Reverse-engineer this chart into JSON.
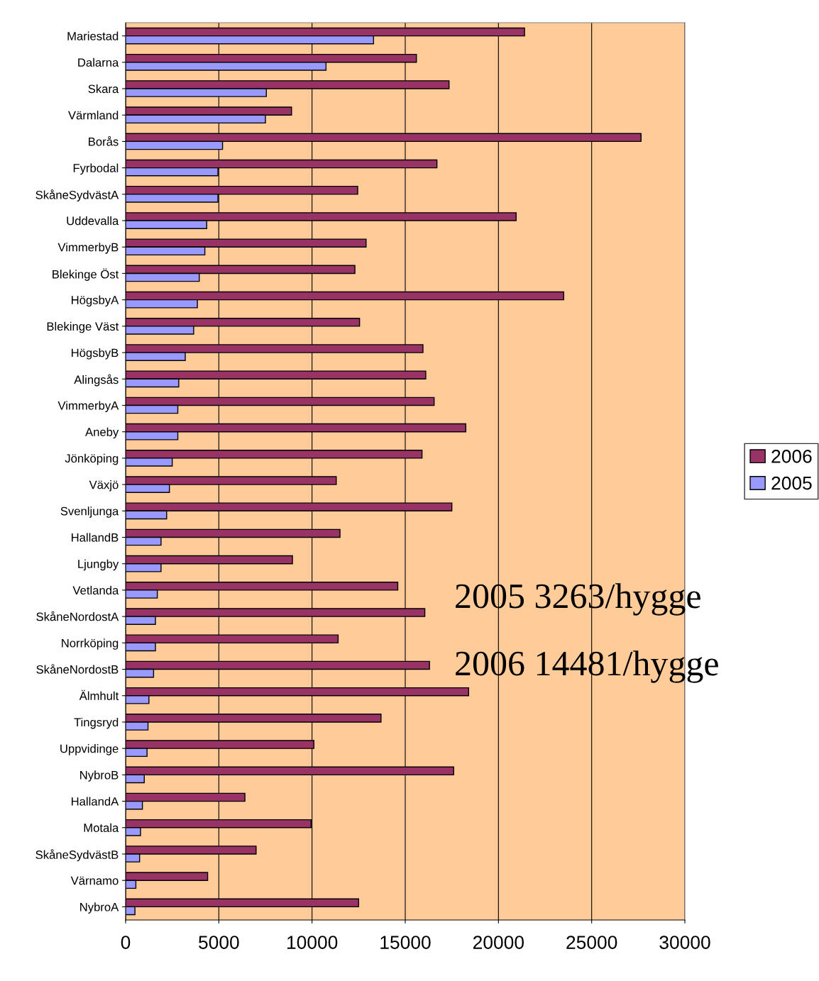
{
  "chart_data": {
    "type": "bar",
    "orientation": "horizontal",
    "categories": [
      "Mariestad",
      "Dalarna",
      "Skara",
      "Värmland",
      "Borås",
      "Fyrbodal",
      "SkåneSydvästA",
      "Uddevalla",
      "VimmerbyB",
      "Blekinge Öst",
      "HögsbyA",
      "Blekinge Väst",
      "HögsbyB",
      "Alingsås",
      "VimmerbyA",
      "Aneby",
      "Jönköping",
      "Växjö",
      "Svenljunga",
      "HallandB",
      "Ljungby",
      "Vetlanda",
      "SkåneNordostA",
      "Norrköping",
      "SkåneNordostB",
      "Älmhult",
      "Tingsryd",
      "Uppvidinge",
      "NybroB",
      "HallandA",
      "Motala",
      "SkåneSydvästB",
      "Värnamo",
      "NybroA"
    ],
    "series": [
      {
        "name": "2006",
        "color": "#993366",
        "values": [
          21400,
          15600,
          17350,
          8900,
          27650,
          16700,
          12450,
          20950,
          12900,
          12300,
          23500,
          12550,
          15950,
          16100,
          16550,
          18250,
          15900,
          11300,
          17500,
          11500,
          8950,
          14600,
          16050,
          11400,
          16300,
          18400,
          13700,
          10100,
          17600,
          6400,
          9950,
          7000,
          4400,
          12500
        ]
      },
      {
        "name": "2005",
        "color": "#9999ff",
        "values": [
          13300,
          10750,
          7550,
          7500,
          5200,
          4950,
          4950,
          4350,
          4250,
          3950,
          3850,
          3650,
          3200,
          2850,
          2800,
          2800,
          2500,
          2350,
          2200,
          1900,
          1900,
          1700,
          1600,
          1600,
          1500,
          1250,
          1200,
          1150,
          1000,
          900,
          800,
          750,
          550,
          500
        ]
      }
    ],
    "xlim": [
      0,
      30000
    ],
    "xticks": [
      0,
      5000,
      10000,
      15000,
      20000,
      25000,
      30000
    ],
    "grid": "x",
    "legend": "right",
    "annotations": [
      "2005 3263/hygge",
      "2006 14481/hygge"
    ]
  }
}
